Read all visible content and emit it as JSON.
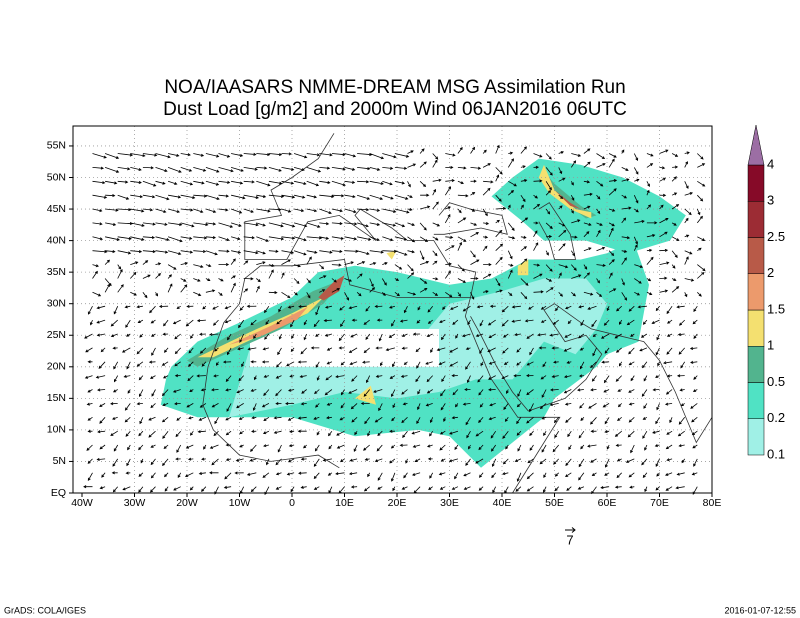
{
  "title": [
    "NOA/IAASARS NMME-DREAM MSG Assimilation Run",
    "Dust Load [g/m2] and 2000m Wind 06JAN2016 06UTC"
  ],
  "x_axis": {
    "labels": [
      "40W",
      "30W",
      "20W",
      "10W",
      "0",
      "10E",
      "20E",
      "30E",
      "40E",
      "50E",
      "60E",
      "70E",
      "80E"
    ]
  },
  "y_axis": {
    "labels": [
      "EQ",
      "5N",
      "10N",
      "15N",
      "20N",
      "25N",
      "30N",
      "35N",
      "40N",
      "45N",
      "50N",
      "55N"
    ]
  },
  "colorbar": {
    "labels": [
      "0.1",
      "0.2",
      "0.5",
      "1",
      "1.5",
      "2",
      "2.5",
      "3",
      "4"
    ],
    "colors": [
      "#a0f0e6",
      "#50e2c4",
      "#52b48e",
      "#f4e070",
      "#ec9a6c",
      "#b85a48",
      "#9c2c34",
      "#860a28",
      "#9c6ea4",
      "#a0a0a0"
    ]
  },
  "reference_vector": {
    "label": "7"
  },
  "footer": {
    "left": "GrADS: COLA/IGES",
    "right": "2016-01-07-12:55"
  }
}
